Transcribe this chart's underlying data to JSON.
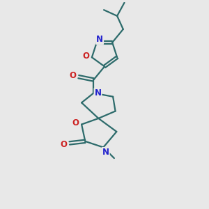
{
  "background_color": "#e8e8e8",
  "bond_color": "#2d6b6b",
  "bond_width": 1.6,
  "dbo": 0.018,
  "atom_colors": {
    "N": "#2222cc",
    "O": "#cc2222"
  }
}
